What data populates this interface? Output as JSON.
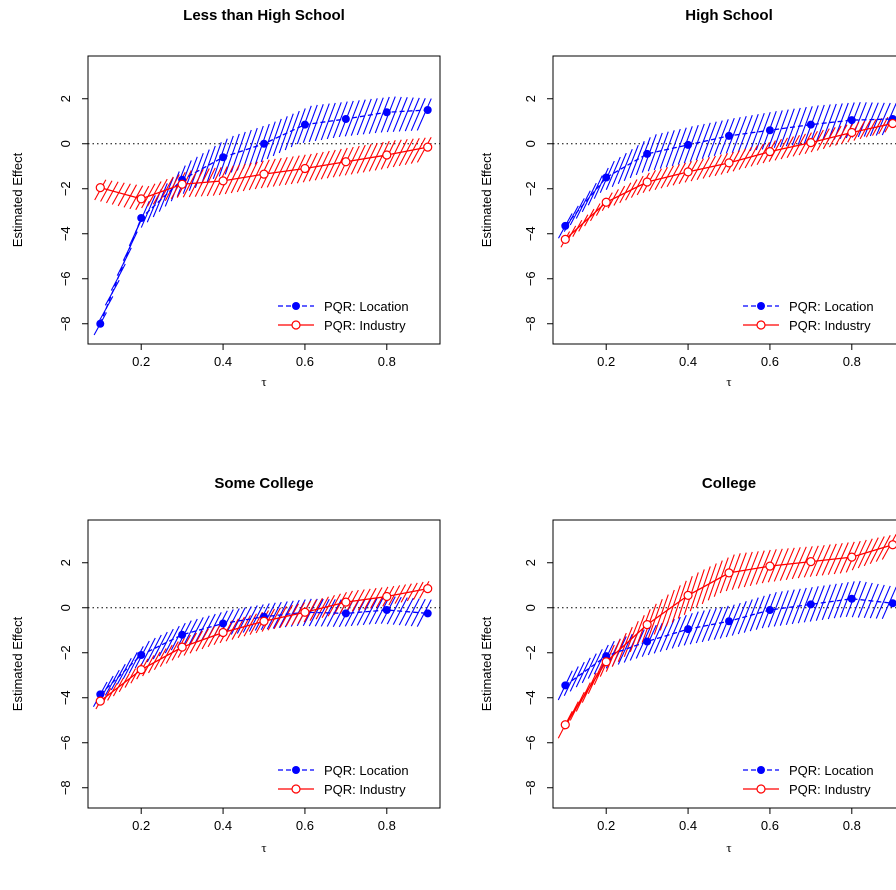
{
  "colors": {
    "location": "#0000ff",
    "industry": "#ff0000"
  },
  "legend": {
    "location": "PQR: Location",
    "industry": "PQR: Industry"
  },
  "chart_data": [
    {
      "type": "line",
      "title": "Less than High School",
      "xlabel": "τ",
      "ylabel": "Estimated Effect",
      "x": [
        0.1,
        0.2,
        0.3,
        0.4,
        0.5,
        0.6,
        0.7,
        0.8,
        0.9
      ],
      "xlim": [
        0.07,
        0.93
      ],
      "ylim": [
        -8.9,
        3.9
      ],
      "xticks": [
        "0.2",
        "0.4",
        "0.6",
        "0.8"
      ],
      "yticks": [
        "2",
        "0",
        "−2",
        "−4",
        "−6",
        "−8"
      ],
      "legend_position": "bottom-right",
      "series": [
        {
          "name": "PQR: Location",
          "values": [
            -8.0,
            -3.3,
            -1.6,
            -0.6,
            0.0,
            0.85,
            1.1,
            1.4,
            1.5
          ],
          "lower": [
            -8.5,
            -4.0,
            -2.4,
            -1.5,
            -0.9,
            0.0,
            0.3,
            0.5,
            0.6
          ],
          "upper": [
            -7.5,
            -2.6,
            -0.8,
            0.3,
            0.9,
            1.7,
            1.9,
            2.1,
            2.0
          ]
        },
        {
          "name": "PQR: Industry",
          "values": [
            -1.95,
            -2.45,
            -1.8,
            -1.65,
            -1.35,
            -1.1,
            -0.8,
            -0.5,
            -0.15
          ],
          "lower": [
            -2.5,
            -2.95,
            -2.4,
            -2.3,
            -2.0,
            -1.75,
            -1.45,
            -1.15,
            -0.8
          ],
          "upper": [
            -1.6,
            -1.9,
            -1.2,
            -1.0,
            -0.7,
            -0.45,
            -0.15,
            0.15,
            0.3
          ]
        }
      ]
    },
    {
      "type": "line",
      "title": "High School",
      "xlabel": "τ",
      "ylabel": "Estimated Effect",
      "x": [
        0.1,
        0.2,
        0.3,
        0.4,
        0.5,
        0.6,
        0.7,
        0.8,
        0.9
      ],
      "xlim": [
        0.07,
        0.93
      ],
      "ylim": [
        -8.9,
        3.9
      ],
      "xticks": [
        "0.2",
        "0.4",
        "0.6",
        "0.8"
      ],
      "yticks": [
        "2",
        "0",
        "−2",
        "−4",
        "−6",
        "−8"
      ],
      "legend_position": "bottom-right",
      "series": [
        {
          "name": "PQR: Location",
          "values": [
            -3.65,
            -1.5,
            -0.45,
            -0.05,
            0.35,
            0.6,
            0.85,
            1.05,
            1.1
          ],
          "lower": [
            -4.2,
            -2.2,
            -1.3,
            -0.9,
            -0.45,
            -0.25,
            0.0,
            0.25,
            0.4
          ],
          "upper": [
            -3.1,
            -0.8,
            0.4,
            0.8,
            1.15,
            1.45,
            1.7,
            1.85,
            1.8
          ]
        },
        {
          "name": "PQR: Industry",
          "values": [
            -4.25,
            -2.6,
            -1.7,
            -1.25,
            -0.85,
            -0.35,
            0.05,
            0.5,
            0.9
          ],
          "lower": [
            -4.6,
            -3.0,
            -2.2,
            -1.75,
            -1.35,
            -0.85,
            -0.45,
            0.05,
            0.55
          ],
          "upper": [
            -3.9,
            -2.2,
            -1.2,
            -0.75,
            -0.35,
            0.15,
            0.55,
            0.95,
            1.25
          ]
        }
      ]
    },
    {
      "type": "line",
      "title": "Some College",
      "xlabel": "τ",
      "ylabel": "Estimated Effect",
      "x": [
        0.1,
        0.2,
        0.3,
        0.4,
        0.5,
        0.6,
        0.7,
        0.8,
        0.9
      ],
      "xlim": [
        0.07,
        0.93
      ],
      "ylim": [
        -8.9,
        3.9
      ],
      "xticks": [
        "0.2",
        "0.4",
        "0.6",
        "0.8"
      ],
      "yticks": [
        "2",
        "0",
        "−2",
        "−4",
        "−6",
        "−8"
      ],
      "legend_position": "bottom-right",
      "series": [
        {
          "name": "PQR: Location",
          "values": [
            -3.85,
            -2.1,
            -1.2,
            -0.7,
            -0.4,
            -0.2,
            -0.25,
            -0.1,
            -0.25
          ],
          "lower": [
            -4.4,
            -2.7,
            -1.8,
            -1.3,
            -1.0,
            -0.8,
            -0.85,
            -0.7,
            -0.85
          ],
          "upper": [
            -3.3,
            -1.5,
            -0.6,
            -0.1,
            0.2,
            0.4,
            0.35,
            0.5,
            0.35
          ]
        },
        {
          "name": "PQR: Industry",
          "values": [
            -4.15,
            -2.75,
            -1.75,
            -1.1,
            -0.6,
            -0.2,
            0.25,
            0.5,
            0.85
          ],
          "lower": [
            -4.5,
            -3.2,
            -2.25,
            -1.6,
            -1.1,
            -0.7,
            -0.25,
            0.05,
            0.45
          ],
          "upper": [
            -3.8,
            -2.3,
            -1.25,
            -0.6,
            -0.1,
            0.3,
            0.75,
            0.95,
            1.2
          ]
        }
      ]
    },
    {
      "type": "line",
      "title": "College",
      "xlabel": "τ",
      "ylabel": "Estimated Effect",
      "x": [
        0.1,
        0.2,
        0.3,
        0.4,
        0.5,
        0.6,
        0.7,
        0.8,
        0.9
      ],
      "xlim": [
        0.07,
        0.93
      ],
      "ylim": [
        -8.9,
        3.9
      ],
      "xticks": [
        "0.2",
        "0.4",
        "0.6",
        "0.8"
      ],
      "yticks": [
        "2",
        "0",
        "−2",
        "−4",
        "−6",
        "−8"
      ],
      "legend_position": "bottom-right",
      "series": [
        {
          "name": "PQR: Location",
          "values": [
            -3.45,
            -2.15,
            -1.5,
            -0.95,
            -0.6,
            -0.1,
            0.15,
            0.4,
            0.2
          ],
          "lower": [
            -4.1,
            -2.8,
            -2.2,
            -1.7,
            -1.35,
            -0.9,
            -0.65,
            -0.4,
            -0.5
          ],
          "upper": [
            -2.8,
            -1.5,
            -0.8,
            -0.2,
            0.15,
            0.7,
            0.95,
            1.2,
            0.9
          ]
        },
        {
          "name": "PQR: Industry",
          "values": [
            -5.2,
            -2.4,
            -0.75,
            0.55,
            1.55,
            1.85,
            2.05,
            2.25,
            2.8
          ],
          "lower": [
            -5.8,
            -3.1,
            -1.6,
            -0.4,
            0.7,
            1.1,
            1.35,
            1.55,
            2.2
          ],
          "upper": [
            -4.6,
            -1.7,
            0.1,
            1.5,
            2.4,
            2.6,
            2.75,
            2.95,
            3.3
          ]
        }
      ]
    }
  ]
}
